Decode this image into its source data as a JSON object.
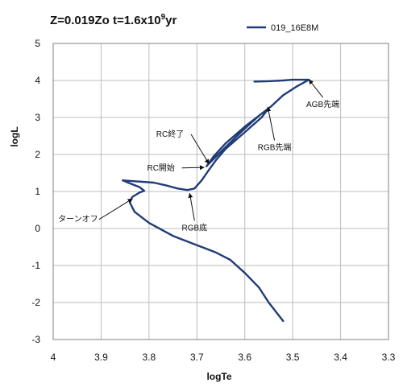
{
  "chart_data": {
    "type": "line",
    "title": {
      "main": "Z=0.019Zo t=1.6x10",
      "sup": "9",
      "unit": "yr"
    },
    "xlabel": "logTe",
    "ylabel": "logL",
    "xlim": [
      4,
      3.3
    ],
    "ylim": [
      -3,
      5
    ],
    "x_reversed": true,
    "x_ticks": [
      "4",
      "3.9",
      "3.8",
      "3.7",
      "3.6",
      "3.5",
      "3.4",
      "3.3"
    ],
    "y_ticks": [
      "5",
      "4",
      "3",
      "2",
      "1",
      "0",
      "-1",
      "-2",
      "-3"
    ],
    "grid": true,
    "legend_position": "top-right",
    "colors": {
      "series": "#1f3c78",
      "grid": "#bdbdbd",
      "axis": "#7f7f7f",
      "arrow": "#111111"
    },
    "series": [
      {
        "name": "019_16E8M",
        "points": [
          [
            3.52,
            -2.5
          ],
          [
            3.55,
            -2.0
          ],
          [
            3.57,
            -1.6
          ],
          [
            3.6,
            -1.2
          ],
          [
            3.63,
            -0.85
          ],
          [
            3.66,
            -0.65
          ],
          [
            3.7,
            -0.45
          ],
          [
            3.75,
            -0.2
          ],
          [
            3.8,
            0.15
          ],
          [
            3.83,
            0.45
          ],
          [
            3.84,
            0.7
          ],
          [
            3.835,
            0.85
          ],
          [
            3.82,
            0.97
          ],
          [
            3.81,
            1.02
          ],
          [
            3.82,
            1.12
          ],
          [
            3.84,
            1.22
          ],
          [
            3.855,
            1.3
          ],
          [
            3.835,
            1.28
          ],
          [
            3.79,
            1.24
          ],
          [
            3.76,
            1.15
          ],
          [
            3.74,
            1.08
          ],
          [
            3.72,
            1.04
          ],
          [
            3.705,
            1.08
          ],
          [
            3.69,
            1.3
          ],
          [
            3.675,
            1.58
          ],
          [
            3.66,
            1.85
          ],
          [
            3.64,
            2.15
          ],
          [
            3.6,
            2.6
          ],
          [
            3.565,
            3.0
          ],
          [
            3.55,
            3.25
          ],
          [
            3.56,
            3.15
          ],
          [
            3.6,
            2.75
          ],
          [
            3.64,
            2.3
          ],
          [
            3.665,
            1.95
          ],
          [
            3.68,
            1.68
          ],
          [
            3.675,
            1.75
          ],
          [
            3.64,
            2.2
          ],
          [
            3.6,
            2.7
          ],
          [
            3.57,
            3.05
          ],
          [
            3.545,
            3.3
          ],
          [
            3.52,
            3.6
          ],
          [
            3.49,
            3.85
          ],
          [
            3.466,
            4.02
          ],
          [
            3.5,
            4.02
          ],
          [
            3.52,
            4.0
          ],
          [
            3.55,
            3.98
          ],
          [
            3.58,
            3.97
          ]
        ]
      }
    ],
    "annotations": [
      {
        "text": "AGB先端",
        "target": [
          3.466,
          4.02
        ],
        "text_at": [
          3.437,
          3.28
        ],
        "anchor": "middle"
      },
      {
        "text": "RGB先端",
        "target": [
          3.552,
          3.28
        ],
        "text_at": [
          3.538,
          2.12
        ],
        "anchor": "middle"
      },
      {
        "text": "RC終了",
        "target": [
          3.675,
          1.75
        ],
        "text_at": [
          3.756,
          2.48
        ],
        "anchor": "middle"
      },
      {
        "text": "RC開始",
        "target": [
          3.685,
          1.65
        ],
        "text_at": [
          3.775,
          1.57
        ],
        "anchor": "middle"
      },
      {
        "text": "ターンオフ",
        "target": [
          3.835,
          0.8
        ],
        "text_at": [
          3.948,
          0.18
        ],
        "anchor": "middle"
      },
      {
        "text": "RGB底",
        "target": [
          3.715,
          0.95
        ],
        "text_at": [
          3.705,
          -0.05
        ],
        "anchor": "middle"
      }
    ]
  }
}
